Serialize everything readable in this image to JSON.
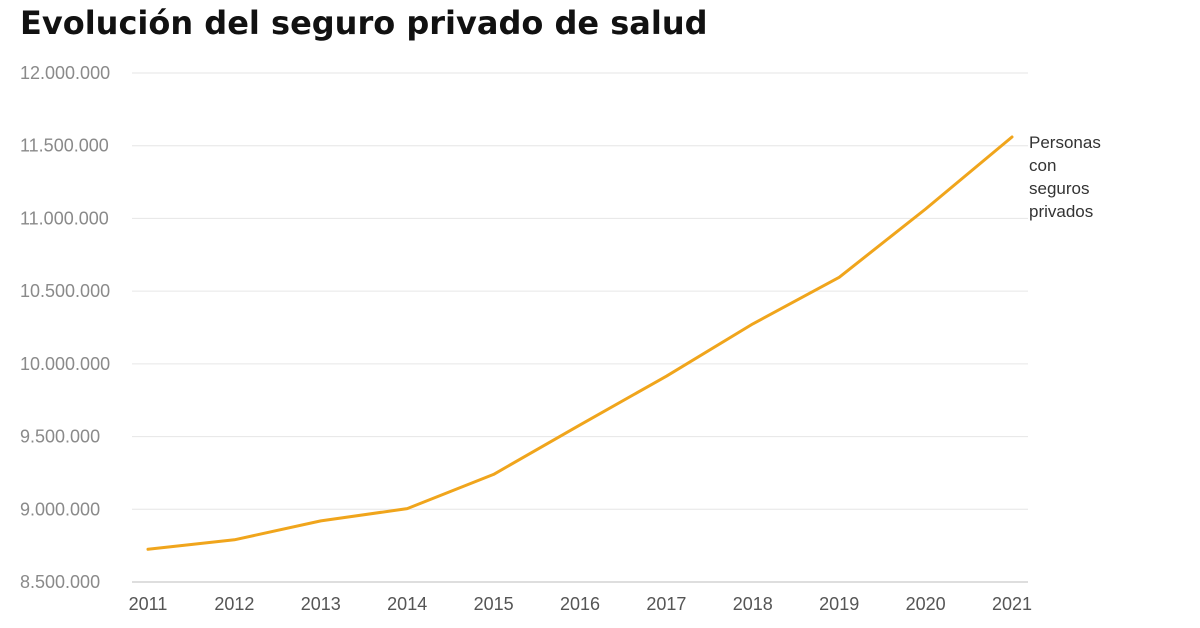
{
  "chart_data": {
    "type": "line",
    "title": "Evolución del seguro privado de salud",
    "xlabel": "",
    "ylabel": "",
    "categories": [
      "2011",
      "2012",
      "2013",
      "2014",
      "2015",
      "2016",
      "2017",
      "2018",
      "2019",
      "2020",
      "2021"
    ],
    "series": [
      {
        "name": "Personas con seguros privados",
        "name_lines": [
          "Personas",
          "con",
          "seguros",
          "privados"
        ],
        "color": "#f0a51c",
        "values": [
          8725000,
          8790000,
          8920000,
          9005000,
          9240000,
          9580000,
          9915000,
          10275000,
          10595000,
          11065000,
          11560000
        ]
      }
    ],
    "ylim": [
      8500000,
      12000000
    ],
    "yticks": [
      8500000,
      9000000,
      9500000,
      10000000,
      10500000,
      11000000,
      11500000,
      12000000
    ],
    "ytick_labels": [
      "8.500.000",
      "9.000.000",
      "9.500.000",
      "10.000.000",
      "10.500.000",
      "11.000.000",
      "11.500.000",
      "12.000.000"
    ],
    "grid": true,
    "legend": "none"
  }
}
